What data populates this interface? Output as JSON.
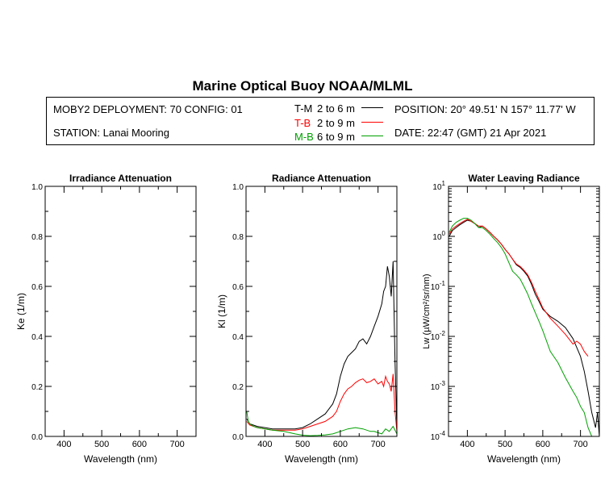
{
  "header": {
    "title": "Marine Optical Buoy NOAA/MLML",
    "deployment": "MOBY2 DEPLOYMENT: 70 CONFIG: 01",
    "station": "STATION: Lanai Mooring",
    "position": "POSITION: 20° 49.51' N   157° 11.77' W",
    "date": "DATE: 22:47 (GMT) 21 Apr 2021"
  },
  "legend": [
    {
      "code": "T-M",
      "range": "2 to 6  m",
      "color": "#000000"
    },
    {
      "code": "T-B",
      "range": "2 to 9  m",
      "color": "#ff0000"
    },
    {
      "code": "M-B",
      "range": "6 to 9  m",
      "color": "#00a000"
    }
  ],
  "chart_data": [
    {
      "type": "line",
      "title": "Irradiance Attenuation",
      "xlabel": "Wavelength (nm)",
      "ylabel": "Ke  (1/m)",
      "xlim": [
        350,
        750
      ],
      "ylim": [
        0,
        1
      ],
      "x_ticks": [
        "400",
        "500",
        "600",
        "700"
      ],
      "y_ticks": [
        "0.0",
        "0.2",
        "0.4",
        "0.6",
        "0.8",
        "1.0"
      ],
      "series": []
    },
    {
      "type": "line",
      "title": "Radiance Attenuation",
      "xlabel": "Wavelength (nm)",
      "ylabel": "Kl  (1/m)",
      "xlim": [
        350,
        750
      ],
      "ylim": [
        0,
        1
      ],
      "x_ticks": [
        "400",
        "500",
        "600",
        "700"
      ],
      "y_ticks": [
        "0.0",
        "0.2",
        "0.4",
        "0.6",
        "0.8",
        "1.0"
      ],
      "series": [
        {
          "name": "T-M",
          "color": "#000000",
          "x": [
            352,
            360,
            380,
            400,
            420,
            450,
            480,
            500,
            520,
            540,
            560,
            580,
            590,
            600,
            610,
            620,
            630,
            640,
            650,
            660,
            670,
            680,
            690,
            700,
            710,
            715,
            720,
            725,
            730,
            735,
            740,
            745,
            750
          ],
          "y": [
            0.07,
            0.05,
            0.04,
            0.035,
            0.03,
            0.03,
            0.03,
            0.035,
            0.05,
            0.07,
            0.09,
            0.13,
            0.17,
            0.24,
            0.29,
            0.32,
            0.335,
            0.35,
            0.38,
            0.39,
            0.37,
            0.4,
            0.44,
            0.48,
            0.53,
            0.58,
            0.6,
            0.68,
            0.64,
            0.56,
            0.7,
            0.3,
            0.03
          ]
        },
        {
          "name": "T-B",
          "color": "#ff0000",
          "x": [
            352,
            360,
            380,
            400,
            420,
            450,
            480,
            500,
            520,
            540,
            560,
            580,
            590,
            600,
            610,
            620,
            630,
            640,
            650,
            660,
            670,
            680,
            690,
            700,
            710,
            715,
            720,
            725,
            730,
            735,
            740,
            745,
            750
          ],
          "y": [
            0.06,
            0.045,
            0.035,
            0.03,
            0.025,
            0.025,
            0.025,
            0.03,
            0.04,
            0.05,
            0.06,
            0.08,
            0.1,
            0.14,
            0.17,
            0.19,
            0.2,
            0.215,
            0.225,
            0.23,
            0.215,
            0.22,
            0.23,
            0.21,
            0.22,
            0.2,
            0.24,
            0.22,
            0.21,
            0.18,
            0.25,
            0.1,
            0.02
          ]
        },
        {
          "name": "M-B",
          "color": "#00a000",
          "x": [
            352,
            356,
            360,
            370,
            380,
            400,
            420,
            450,
            480,
            500,
            520,
            540,
            560,
            580,
            600,
            620,
            640,
            660,
            680,
            690,
            700,
            710,
            720,
            730,
            740,
            750
          ],
          "y": [
            0.1,
            0.06,
            0.05,
            0.04,
            0.035,
            0.03,
            0.025,
            0.02,
            0.01,
            0.005,
            0.003,
            0.004,
            0.006,
            0.01,
            0.02,
            0.03,
            0.035,
            0.03,
            0.02,
            0.02,
            0.015,
            0.01,
            0.03,
            0.02,
            0.04,
            0.01
          ]
        }
      ]
    },
    {
      "type": "line",
      "title": "Water Leaving Radiance",
      "xlabel": "Wavelength (nm)",
      "ylabel": "Lw  (µW/cm²/sr/nm)",
      "yscale": "log",
      "xlim": [
        350,
        750
      ],
      "ylim": [
        0.0001,
        10
      ],
      "x_ticks": [
        "400",
        "500",
        "600",
        "700"
      ],
      "y_ticks": [
        {
          "base": "10",
          "exp": "1",
          "value": 10
        },
        {
          "base": "10",
          "exp": "0",
          "value": 1
        },
        {
          "base": "10",
          "exp": "-1",
          "value": 0.1
        },
        {
          "base": "10",
          "exp": "-2",
          "value": 0.01
        },
        {
          "base": "10",
          "exp": "-3",
          "value": 0.001
        },
        {
          "base": "10",
          "exp": "-4",
          "value": 0.0001
        }
      ],
      "series": [
        {
          "name": "T-M",
          "color": "#000000",
          "x": [
            352,
            360,
            370,
            380,
            390,
            400,
            410,
            420,
            430,
            440,
            450,
            460,
            470,
            480,
            490,
            500,
            510,
            520,
            530,
            540,
            550,
            560,
            570,
            580,
            590,
            600,
            620,
            640,
            660,
            680,
            690,
            700,
            710,
            720,
            730,
            740,
            745,
            750
          ],
          "y": [
            1.0,
            1.3,
            1.5,
            1.7,
            1.9,
            2.1,
            2.0,
            1.8,
            1.5,
            1.6,
            1.4,
            1.2,
            1.0,
            0.85,
            0.7,
            0.55,
            0.45,
            0.35,
            0.27,
            0.24,
            0.2,
            0.16,
            0.11,
            0.07,
            0.05,
            0.035,
            0.025,
            0.02,
            0.015,
            0.009,
            0.006,
            0.004,
            0.002,
            0.0008,
            0.0003,
            0.00015,
            0.0003,
            0.0001
          ]
        },
        {
          "name": "T-B",
          "color": "#ff0000",
          "x": [
            352,
            360,
            370,
            380,
            390,
            400,
            410,
            420,
            430,
            440,
            450,
            460,
            470,
            480,
            490,
            500,
            510,
            520,
            530,
            540,
            550,
            560,
            570,
            580,
            590,
            600,
            620,
            640,
            660,
            680,
            690,
            700,
            710,
            720
          ],
          "y": [
            1.1,
            1.4,
            1.6,
            1.8,
            2.0,
            2.2,
            2.0,
            1.8,
            1.6,
            1.6,
            1.4,
            1.2,
            1.0,
            0.85,
            0.7,
            0.55,
            0.45,
            0.35,
            0.28,
            0.25,
            0.21,
            0.17,
            0.12,
            0.08,
            0.055,
            0.037,
            0.023,
            0.016,
            0.011,
            0.007,
            0.008,
            0.007,
            0.005,
            0.004
          ]
        },
        {
          "name": "M-B",
          "color": "#00a000",
          "x": [
            352,
            360,
            370,
            380,
            390,
            400,
            410,
            420,
            430,
            440,
            450,
            460,
            470,
            480,
            490,
            500,
            510,
            520,
            530,
            540,
            550,
            560,
            570,
            580,
            590,
            600,
            620,
            640,
            660,
            680,
            690,
            700,
            710,
            720,
            730
          ],
          "y": [
            1.2,
            1.6,
            1.9,
            2.1,
            2.3,
            2.3,
            2.1,
            1.8,
            1.5,
            1.5,
            1.3,
            1.1,
            0.9,
            0.75,
            0.6,
            0.45,
            0.3,
            0.2,
            0.17,
            0.14,
            0.1,
            0.07,
            0.045,
            0.03,
            0.02,
            0.013,
            0.005,
            0.003,
            0.0015,
            0.0008,
            0.0006,
            0.0004,
            0.0003,
            0.00015,
            0.0001
          ]
        }
      ]
    }
  ]
}
